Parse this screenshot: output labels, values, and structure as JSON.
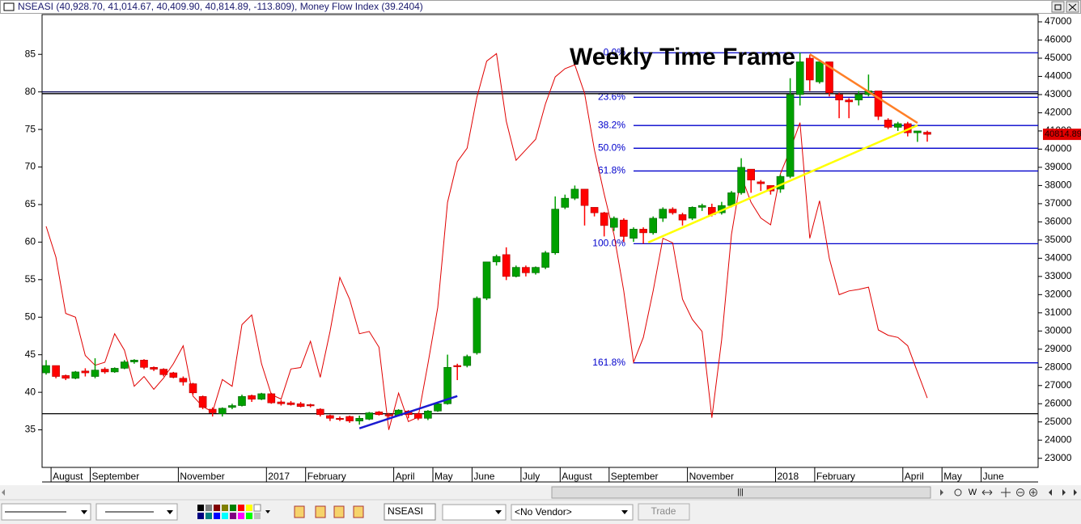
{
  "chart_data": {
    "type": "candlestick",
    "title": "NSEASI (40,928.70, 41,014.67, 40,409.90, 40,814.89, -113.809), Money Flow Index (39.2404)",
    "annotation": "Weekly Time Frame",
    "categories": [
      null,
      "August",
      null,
      null,
      null,
      "September",
      null,
      null,
      null,
      null,
      null,
      null,
      null,
      null,
      "November",
      null,
      null,
      null,
      null,
      null,
      null,
      null,
      null,
      "2017",
      null,
      null,
      null,
      "February",
      null,
      null,
      null,
      null,
      null,
      null,
      null,
      null,
      "April",
      null,
      null,
      null,
      "May",
      null,
      null,
      null,
      "June",
      null,
      null,
      null,
      null,
      "July",
      null,
      null,
      null,
      "August",
      null,
      null,
      null,
      null,
      "September",
      null,
      null,
      null,
      null,
      null,
      null,
      null,
      "November",
      null,
      null,
      null,
      null,
      null,
      null,
      null,
      null,
      "2018",
      null,
      null,
      null,
      "February",
      null,
      null,
      null,
      null,
      null,
      null,
      null,
      null,
      "April",
      null,
      null,
      null,
      "May",
      null,
      null,
      null,
      "June",
      null,
      null,
      null,
      null
    ],
    "open": [
      27700,
      28100,
      27550,
      27400,
      27800,
      27500,
      27900,
      27750,
      27950,
      28300,
      28400,
      28000,
      27900,
      27700,
      27400,
      27100,
      26400,
      25700,
      25450,
      25800,
      25900,
      26450,
      26250,
      26550,
      26100,
      26050,
      26000,
      25950,
      25700,
      25350,
      25200,
      25300,
      25050,
      25150,
      25550,
      25400,
      25350,
      25600,
      25450,
      25200,
      25600,
      26000,
      28100,
      28100,
      28800,
      31800,
      33800,
      34200,
      33000,
      33500,
      33200,
      33500,
      34300,
      36800,
      37300,
      37800,
      36800,
      36500,
      35700,
      36100,
      35100,
      35600,
      35400,
      36200,
      36700,
      36400,
      36200,
      36800,
      36800,
      36500,
      36900,
      37600,
      38900,
      38200,
      38000,
      37800,
      38500,
      43000,
      45000,
      43700,
      44800,
      43000,
      42700,
      42700,
      43000,
      43200,
      41600,
      41200,
      41400,
      40900,
      40928.7,
      null,
      null,
      null,
      null,
      null,
      null,
      null,
      null,
      null,
      null
    ],
    "high": [
      28400,
      28100,
      27600,
      27800,
      27950,
      28500,
      28000,
      28000,
      28400,
      28450,
      28450,
      28050,
      27950,
      27750,
      27500,
      27150,
      26450,
      25800,
      25800,
      26000,
      26500,
      26500,
      26600,
      26600,
      26200,
      26150,
      26100,
      26000,
      25750,
      25400,
      25300,
      25350,
      25350,
      25550,
      25600,
      25500,
      25700,
      25650,
      25500,
      25650,
      26100,
      28700,
      28200,
      28700,
      31900,
      33800,
      34200,
      34600,
      33600,
      33600,
      33550,
      34400,
      37400,
      37500,
      38000,
      37800,
      36800,
      36550,
      36300,
      36200,
      35700,
      35700,
      36300,
      36800,
      36800,
      36500,
      36850,
      37000,
      37000,
      37100,
      37700,
      39500,
      38900,
      38300,
      38000,
      38600,
      43900,
      45300,
      45200,
      44800,
      44800,
      43100,
      42800,
      43200,
      44100,
      43200,
      41700,
      41500,
      41500,
      41000,
      41014.67,
      null,
      null,
      null,
      null,
      null,
      null,
      null,
      null,
      null,
      null
    ],
    "low": [
      27600,
      27400,
      27300,
      27350,
      27500,
      27400,
      27650,
      27700,
      27900,
      28200,
      27900,
      27800,
      27500,
      27400,
      27000,
      26500,
      25700,
      25300,
      25300,
      25700,
      25850,
      26100,
      26200,
      26000,
      25900,
      25900,
      25800,
      25800,
      25300,
      25050,
      25050,
      24950,
      24850,
      25100,
      25350,
      25200,
      25300,
      25200,
      25100,
      25100,
      25550,
      25950,
      27300,
      28000,
      28700,
      31700,
      33600,
      32800,
      32950,
      33000,
      33100,
      33400,
      34200,
      36700,
      37200,
      35800,
      36300,
      35200,
      35500,
      34900,
      34900,
      34800,
      35300,
      36000,
      36400,
      35800,
      36100,
      36600,
      36300,
      36400,
      36800,
      37500,
      37600,
      37700,
      37500,
      37600,
      38400,
      42400,
      43200,
      43600,
      42900,
      41700,
      41700,
      42400,
      42900,
      41600,
      41100,
      41000,
      40700,
      40400,
      40409.9,
      null,
      null,
      null,
      null,
      null,
      null,
      null,
      null,
      null,
      null
    ],
    "close": [
      28100,
      27500,
      27400,
      27750,
      27700,
      27850,
      27750,
      27950,
      28300,
      28400,
      28000,
      27900,
      27600,
      27450,
      27200,
      26600,
      25800,
      25500,
      25750,
      25900,
      26400,
      26250,
      26550,
      26050,
      26000,
      25950,
      25850,
      25900,
      25400,
      25200,
      25150,
      25050,
      25200,
      25500,
      25400,
      25350,
      25650,
      25400,
      25200,
      25600,
      26000,
      28000,
      28050,
      28600,
      31800,
      33800,
      34100,
      33000,
      33500,
      33200,
      33500,
      34300,
      36700,
      37300,
      37800,
      36900,
      36500,
      35800,
      36200,
      35200,
      35600,
      35400,
      36200,
      36700,
      36500,
      36100,
      36800,
      36900,
      36400,
      36900,
      37600,
      39000,
      38300,
      38100,
      37700,
      38500,
      43000,
      44800,
      43800,
      44800,
      43100,
      42700,
      42600,
      43000,
      43200,
      41800,
      41200,
      41400,
      40900,
      41000,
      40814.89,
      null,
      null,
      null,
      null,
      null,
      null,
      null,
      null,
      null,
      null
    ],
    "up_color": "#00a000",
    "down_color": "#ff0000",
    "mfi": {
      "color": "#e00000",
      "values": [
        62.1,
        58,
        50.5,
        50,
        44.9,
        43.6,
        44,
        47.8,
        45.6,
        40.8,
        42.1,
        40.4,
        41.9,
        43.8,
        46.2,
        39.5,
        38.1,
        37.4,
        41.7,
        40.8,
        49,
        50.3,
        43.8,
        39.7,
        39.1,
        43.1,
        43.3,
        46.8,
        42,
        48.1,
        55.3,
        52.4,
        47.8,
        48.1,
        46,
        35,
        39.9,
        36.1,
        36.7,
        43.8,
        51.3,
        65.3,
        70.7,
        72.5,
        79.3,
        84.1,
        85.1,
        76.1,
        70.9,
        72.3,
        73.7,
        78.4,
        82,
        83.1,
        83.6,
        79.8,
        72.3,
        66.4,
        61,
        53.5,
        44,
        47.3,
        53.5,
        60.5,
        59.9,
        52.4,
        49.7,
        48.1,
        36.6,
        47,
        61,
        68.8,
        65.3,
        63.2,
        62.3,
        69.1,
        72.3,
        75.9,
        60.5,
        65.5,
        57.8,
        53,
        53.5,
        53.7,
        54,
        48.3,
        47.6,
        47.3,
        46.2,
        42.7,
        39.24,
        null,
        null,
        null,
        null,
        null,
        null,
        null,
        null,
        null,
        null
      ]
    },
    "ylim": [
      30,
      90.3
    ],
    "yticks": [
      35,
      40,
      45,
      50,
      55,
      60,
      65,
      70,
      75,
      80,
      85
    ],
    "y2lim": [
      22500,
      47400
    ],
    "y2ticks": [
      23000,
      24000,
      25000,
      26000,
      27000,
      28000,
      29000,
      30000,
      31000,
      32000,
      33000,
      34000,
      35000,
      36000,
      37000,
      38000,
      39000,
      40000,
      41000,
      42000,
      43000,
      44000,
      45000,
      46000,
      47000
    ],
    "ref_lines_y": [
      80
    ],
    "ref_lines_y2": [
      43050,
      25450
    ],
    "fib": {
      "color": "#0000cc",
      "start": 60,
      "labels": [
        "0.0%",
        "23.6%",
        "38.2%",
        "50.0%",
        "61.8%",
        "100.0%",
        "161.8%"
      ],
      "values": [
        45300,
        42850,
        41300,
        40050,
        38800,
        34800,
        28250
      ]
    },
    "trendlines": [
      {
        "color": "#1a1ad0",
        "x": [
          32,
          42
        ],
        "y2": [
          24650,
          26420
        ]
      },
      {
        "color": "#ffff00",
        "x": [
          61.5,
          89
        ],
        "y2": [
          34870,
          41310
        ]
      },
      {
        "color": "#ff7f27",
        "x": [
          78,
          89
        ],
        "y2": [
          45220,
          41440
        ]
      }
    ]
  },
  "ui": {
    "scroll_thumb": "|||",
    "nav_letter": "W",
    "symbol": "NSEASI",
    "vendor": "<No Vendor>",
    "trade": "Trade"
  }
}
